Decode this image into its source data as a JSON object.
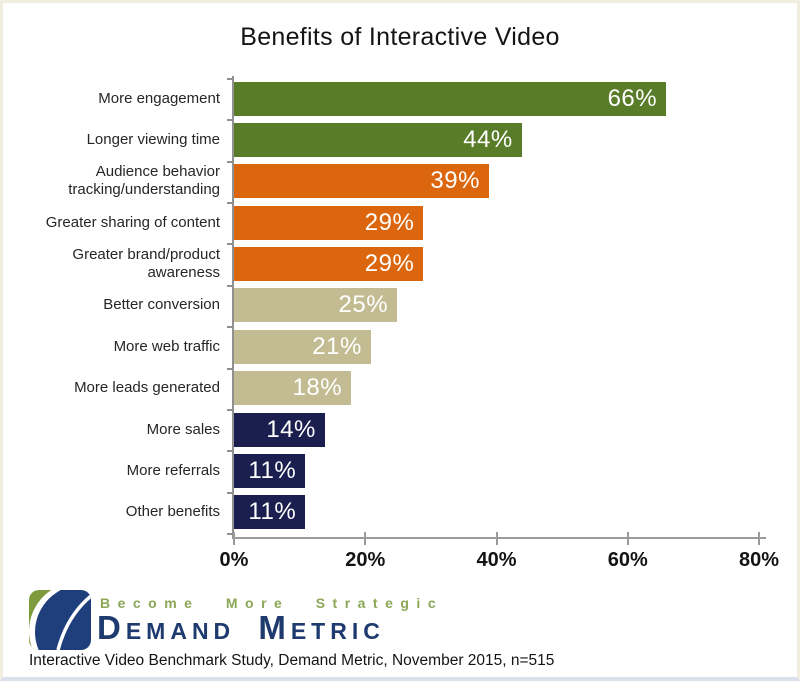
{
  "page": {
    "footer": "Interactive Video Benchmark Study, Demand Metric, November 2015, n=515"
  },
  "logo": {
    "tagline": "Become More Strategic",
    "name": "Demand Metric",
    "colors": {
      "tagline_green": "#8ba757",
      "name_navy": "#1e3a6e",
      "mark_green": "#7d9b3c",
      "mark_navy": "#1e3f7b"
    }
  },
  "chart_data": {
    "type": "bar",
    "orientation": "horizontal",
    "title": "Benefits of Interactive Video",
    "categories": [
      "More engagement",
      "Longer viewing time",
      "Audience behavior tracking/understanding",
      "Greater sharing of content",
      "Greater brand/product awareness",
      "Better conversion",
      "More web traffic",
      "More leads generated",
      "More sales",
      "More referrals",
      "Other benefits"
    ],
    "values": [
      66,
      44,
      39,
      29,
      29,
      25,
      21,
      18,
      14,
      11,
      11
    ],
    "value_labels": [
      "66%",
      "44%",
      "39%",
      "29%",
      "29%",
      "25%",
      "21%",
      "18%",
      "14%",
      "11%",
      "11%"
    ],
    "bar_colors": [
      "#597c29",
      "#597c29",
      "#db660d",
      "#db660d",
      "#db660d",
      "#c3bc93",
      "#c3bc93",
      "#c3bc93",
      "#1a1f4f",
      "#1a1f4f",
      "#1a1f4f"
    ],
    "value_label_position": "inside-end",
    "value_label_color": "#ffffff",
    "xlim": [
      0,
      80
    ],
    "x_ticks": [
      "0%",
      "20%",
      "40%",
      "60%",
      "80%"
    ],
    "x_tick_values": [
      0,
      20,
      40,
      60,
      80
    ],
    "grid": false,
    "legend": false,
    "axis_color": "#9b9b9b"
  }
}
